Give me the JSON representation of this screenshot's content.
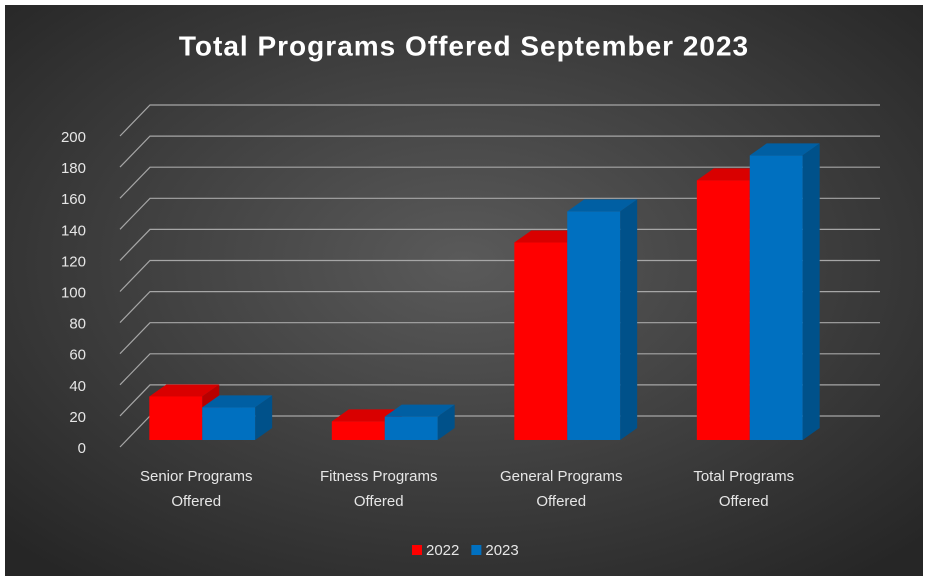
{
  "chart_data": {
    "type": "bar3d",
    "title": "Total Programs Offered September 2023",
    "categories": [
      "Senior Programs Offered",
      "Fitness Programs Offered",
      "General Programs Offered",
      "Total Programs Offered"
    ],
    "series": [
      {
        "name": "2022",
        "color": "#ff0000",
        "values": [
          28,
          12,
          127,
          167
        ]
      },
      {
        "name": "2023",
        "color": "#0070c0",
        "values": [
          21,
          15,
          147,
          183
        ]
      }
    ],
    "ylim": [
      0,
      200
    ],
    "yticks": [
      0,
      20,
      40,
      60,
      80,
      100,
      120,
      140,
      160,
      180,
      200
    ],
    "grid": true,
    "legend": "bottom"
  }
}
